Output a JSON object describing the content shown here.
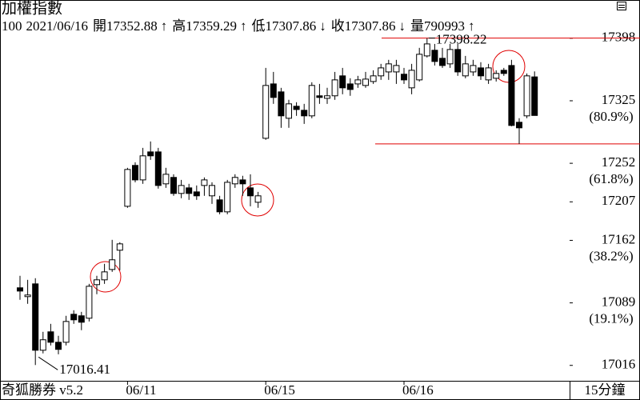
{
  "chart_data": {
    "type": "candlestick",
    "title": "加權指數",
    "period": 100,
    "date": "2021/06/16",
    "quote": [
      {
        "label": "開",
        "value": 17352.88,
        "arrow": "↑"
      },
      {
        "label": "高",
        "value": 17359.29,
        "arrow": "↑"
      },
      {
        "label": "低",
        "value": 17307.86,
        "arrow": "↓"
      },
      {
        "label": "收",
        "value": 17307.86,
        "arrow": "↓"
      },
      {
        "label": "量",
        "value": 790993,
        "arrow": "↑"
      }
    ],
    "footer_left": "奇狐勝券 v5.2",
    "interval": "15分鐘",
    "categories": [
      null,
      null,
      null,
      null,
      null,
      null,
      null,
      null,
      null,
      null,
      null,
      null,
      null,
      null,
      "06/11",
      null,
      null,
      null,
      null,
      null,
      null,
      null,
      null,
      null,
      null,
      null,
      null,
      null,
      null,
      null,
      null,
      null,
      "06/15",
      null,
      null,
      null,
      null,
      null,
      null,
      null,
      null,
      null,
      null,
      null,
      null,
      null,
      null,
      null,
      null,
      null,
      "06/16",
      null,
      null,
      null,
      null,
      null,
      null,
      null,
      null,
      null,
      null,
      null,
      null,
      null,
      null,
      null,
      null,
      null
    ],
    "open": [
      17106.6,
      17096.3,
      17111.2,
      17033.7,
      17055.2,
      17043,
      17043,
      17075.7,
      17073.9,
      17071.1,
      17110.3,
      17115.9,
      17128,
      17150.5,
      17201.8,
      17249.5,
      17232.6,
      17265.3,
      17265.3,
      17228,
      17235.5,
      17216.8,
      17223.3,
      17218.6,
      17226.1,
      17214,
      17209.3,
      17195.3,
      17228,
      17232.6,
      17223.3,
      17206.5,
      17281.2,
      17344.7,
      17335.4,
      17304.6,
      17318.6,
      17313.9,
      17307.4,
      17330.8,
      17327.9,
      17330.8,
      17354.1,
      17344.7,
      17344.7,
      17342.9,
      17347.5,
      17354.1,
      17358.7,
      17358.7,
      17356,
      17340.1,
      17349.4,
      17377.4,
      17384,
      17374.6,
      17368.1,
      17384.9,
      17354.1,
      17358.7,
      17363.4,
      17349.4,
      17351.3,
      17360.6,
      17366.2,
      17299.9,
      17307.4,
      17352.88
    ],
    "high": [
      17120.6,
      17115.9,
      17117.8,
      17055.2,
      17064.5,
      17050.5,
      17073.9,
      17080.4,
      17078.5,
      17111.2,
      17120.6,
      17134.6,
      17162.6,
      17159.8,
      17246.7,
      17253.2,
      17270,
      17277.5,
      17270,
      17246.7,
      17239.2,
      17232.6,
      17228,
      17226.1,
      17235.5,
      17229.8,
      17214,
      17232.6,
      17239.2,
      17237.4,
      17239.2,
      17218.6,
      17363.4,
      17358.7,
      17340.1,
      17326.1,
      17323.3,
      17321.4,
      17346.6,
      17344.7,
      17340.1,
      17358.7,
      17363.4,
      17351.3,
      17354.1,
      17358.7,
      17360.6,
      17368.1,
      17372.8,
      17372.8,
      17363.4,
      17368.1,
      17386.8,
      17398.22,
      17391.4,
      17386.8,
      17391.4,
      17391.4,
      17377.4,
      17372.8,
      17370,
      17368.1,
      17360.6,
      17363.4,
      17372.8,
      17304.6,
      17356.9,
      17359.29
    ],
    "low": [
      17092.6,
      17087.9,
      17016.41,
      17030,
      17039.3,
      17029,
      17039.3,
      17064.5,
      17057.1,
      17067.3,
      17099.1,
      17111.2,
      17125.2,
      17127.1,
      17200,
      17229.8,
      17228,
      17256,
      17222.4,
      17223.3,
      17214,
      17211.2,
      17209.3,
      17209.3,
      17214,
      17204.6,
      17192.5,
      17192.5,
      17223.3,
      17214,
      17201.8,
      17200,
      17279.4,
      17321.4,
      17293.4,
      17293.4,
      17307.4,
      17298,
      17304.6,
      17321.4,
      17321.4,
      17326.1,
      17332.6,
      17330.8,
      17340.1,
      17340.1,
      17344.7,
      17349.4,
      17349.4,
      17344.7,
      17344.7,
      17332.6,
      17347.5,
      17375.6,
      17366.2,
      17363.4,
      17363.4,
      17354.1,
      17351.3,
      17354.1,
      17349.4,
      17344.7,
      17347.5,
      17354.1,
      17295.2,
      17274.7,
      17304.6,
      17307.86
    ],
    "close": [
      17102.8,
      17098.2,
      17033.7,
      17045.9,
      17043,
      17034.7,
      17067.3,
      17069.2,
      17066.4,
      17108.4,
      17115.9,
      17125.2,
      17139.3,
      17157.9,
      17244.8,
      17232.6,
      17260.7,
      17260.7,
      17226.1,
      17239.2,
      17216.8,
      17226.1,
      17216.8,
      17214,
      17232.6,
      17226.1,
      17195.3,
      17229.8,
      17235.5,
      17228,
      17214,
      17214,
      17342.9,
      17328.9,
      17307.4,
      17321.4,
      17314.8,
      17307.4,
      17342.9,
      17328.9,
      17330.8,
      17349.4,
      17340.1,
      17338.2,
      17349.4,
      17350.3,
      17354.1,
      17363.4,
      17368.1,
      17366.2,
      17349.4,
      17360.6,
      17379.3,
      17391.4,
      17370.9,
      17366.2,
      17384.9,
      17358.7,
      17368.1,
      17366.2,
      17354.1,
      17363.4,
      17356.9,
      17356.9,
      17296.2,
      17293.4,
      17354.1,
      17307.86
    ],
    "up_color": "#ffffff",
    "down_color": "#000000",
    "line_color": "#000000",
    "reference_lines": [
      17398.22,
      17274.7
    ],
    "reference_color": "#e00000",
    "ylim": [
      16998,
      17424
    ],
    "yticks": [
      17398,
      17325,
      17252,
      17207,
      17162,
      17089,
      17016
    ],
    "fib_levels": [
      {
        "value": 17325,
        "label": "(80.9%)"
      },
      {
        "value": 17252,
        "label": "(61.8%)"
      },
      {
        "value": 17162,
        "label": "(38.2%)"
      },
      {
        "value": 17089,
        "label": "(19.1%)"
      }
    ]
  }
}
